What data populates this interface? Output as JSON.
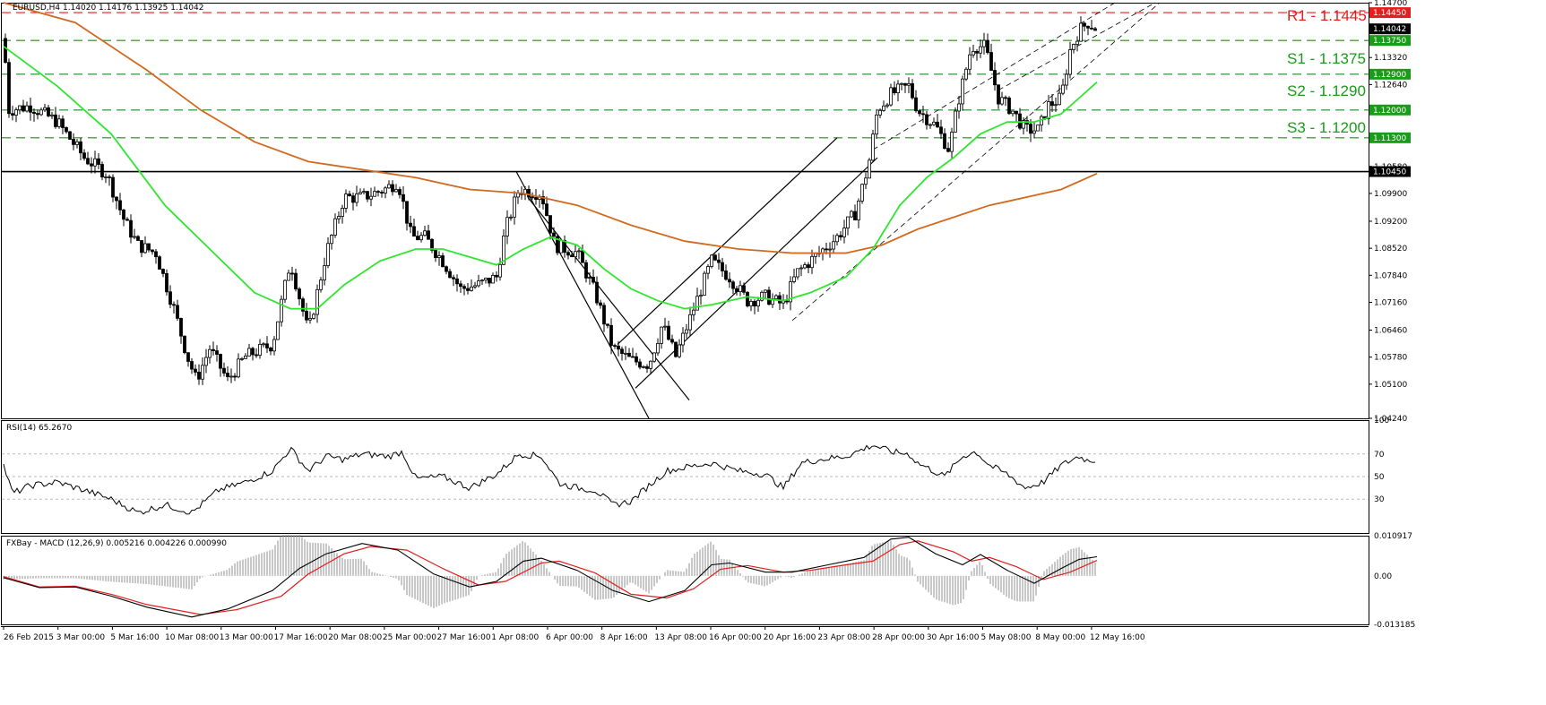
{
  "header": {
    "title": "EURUSD,H4  1.14020 1.14176 1.13925 1.14042",
    "rsi_title": "RSI(14) 65.2670",
    "macd_title": "FXBay - MACD (12,26,9) 0.005216 0.004226 0.000990"
  },
  "levels": [
    {
      "label": "R1 - 1.1445",
      "price": 1.1445,
      "color": "#e41e1e"
    },
    {
      "label": "S1 - 1.1375",
      "price": 1.1375,
      "color": "#1a9b1a"
    },
    {
      "label": "S2 - 1.1290",
      "price": 1.129,
      "color": "#1a9b1a"
    },
    {
      "label": "S3 - 1.1200",
      "price": 1.12,
      "color": "#1a9b1a"
    }
  ],
  "chart_data": [
    {
      "type": "candlestick",
      "title": "EURUSD,H4",
      "ylim": [
        1.0424,
        1.147
      ],
      "y_ticks": [
        1.0424,
        1.051,
        1.0578,
        1.0646,
        1.0716,
        1.0784,
        1.0852,
        1.092,
        1.099,
        1.1058,
        1.1126,
        1.1194,
        1.1264,
        1.1332,
        1.14,
        1.147
      ],
      "x_tick_labels": [
        "26 Feb 2015",
        "3 Mar 00:00",
        "5 Mar 16:00",
        "10 Mar 08:00",
        "13 Mar 00:00",
        "17 Mar 16:00",
        "20 Mar 08:00",
        "25 Mar 00:00",
        "27 Mar 16:00",
        "1 Apr 08:00",
        "6 Apr 00:00",
        "8 Apr 16:00",
        "13 Apr 08:00",
        "16 Apr 00:00",
        "20 Apr 16:00",
        "23 Apr 08:00",
        "28 Apr 00:00",
        "30 Apr 16:00",
        "5 May 08:00",
        "8 May 00:00",
        "12 May 16:00"
      ],
      "price_path": [
        [
          0,
          1.138
        ],
        [
          6,
          1.12
        ],
        [
          30,
          1.121
        ],
        [
          60,
          1.117
        ],
        [
          90,
          1.108
        ],
        [
          115,
          1.104
        ],
        [
          135,
          1.092
        ],
        [
          150,
          1.086
        ],
        [
          170,
          1.084
        ],
        [
          190,
          1.07
        ],
        [
          205,
          1.058
        ],
        [
          215,
          1.052
        ],
        [
          230,
          1.06
        ],
        [
          250,
          1.052
        ],
        [
          270,
          1.058
        ],
        [
          300,
          1.061
        ],
        [
          320,
          1.082
        ],
        [
          340,
          1.064
        ],
        [
          360,
          1.084
        ],
        [
          380,
          1.098
        ],
        [
          400,
          1.098
        ],
        [
          425,
          1.1
        ],
        [
          440,
          1.102
        ],
        [
          455,
          1.088
        ],
        [
          470,
          1.088
        ],
        [
          490,
          1.082
        ],
        [
          510,
          1.075
        ],
        [
          530,
          1.076
        ],
        [
          550,
          1.078
        ],
        [
          560,
          1.09
        ],
        [
          575,
          1.1
        ],
        [
          600,
          1.099
        ],
        [
          615,
          1.086
        ],
        [
          640,
          1.084
        ],
        [
          660,
          1.074
        ],
        [
          680,
          1.06
        ],
        [
          700,
          1.057
        ],
        [
          720,
          1.056
        ],
        [
          735,
          1.066
        ],
        [
          750,
          1.058
        ],
        [
          770,
          1.07
        ],
        [
          790,
          1.082
        ],
        [
          810,
          1.078
        ],
        [
          830,
          1.072
        ],
        [
          850,
          1.073
        ],
        [
          870,
          1.071
        ],
        [
          885,
          1.079
        ],
        [
          910,
          1.084
        ],
        [
          930,
          1.088
        ],
        [
          950,
          1.094
        ],
        [
          965,
          1.106
        ],
        [
          975,
          1.12
        ],
        [
          990,
          1.124
        ],
        [
          1010,
          1.126
        ],
        [
          1020,
          1.12
        ],
        [
          1040,
          1.116
        ],
        [
          1055,
          1.11
        ],
        [
          1065,
          1.122
        ],
        [
          1080,
          1.136
        ],
        [
          1095,
          1.136
        ],
        [
          1110,
          1.123
        ],
        [
          1125,
          1.12
        ],
        [
          1140,
          1.115
        ],
        [
          1155,
          1.115
        ],
        [
          1165,
          1.121
        ],
        [
          1180,
          1.123
        ],
        [
          1190,
          1.135
        ],
        [
          1200,
          1.14
        ],
        [
          1210,
          1.142
        ],
        [
          1220,
          1.1404
        ]
      ],
      "sma_fast": [
        [
          0,
          1.136
        ],
        [
          60,
          1.126
        ],
        [
          120,
          1.114
        ],
        [
          180,
          1.096
        ],
        [
          230,
          1.085
        ],
        [
          280,
          1.074
        ],
        [
          320,
          1.07
        ],
        [
          350,
          1.07
        ],
        [
          380,
          1.076
        ],
        [
          420,
          1.082
        ],
        [
          460,
          1.085
        ],
        [
          490,
          1.085
        ],
        [
          520,
          1.083
        ],
        [
          550,
          1.081
        ],
        [
          580,
          1.085
        ],
        [
          610,
          1.088
        ],
        [
          640,
          1.086
        ],
        [
          670,
          1.08
        ],
        [
          700,
          1.075
        ],
        [
          730,
          1.072
        ],
        [
          760,
          1.07
        ],
        [
          790,
          1.071
        ],
        [
          830,
          1.073
        ],
        [
          870,
          1.072
        ],
        [
          900,
          1.074
        ],
        [
          940,
          1.078
        ],
        [
          970,
          1.085
        ],
        [
          1000,
          1.096
        ],
        [
          1030,
          1.103
        ],
        [
          1060,
          1.108
        ],
        [
          1090,
          1.114
        ],
        [
          1120,
          1.117
        ],
        [
          1150,
          1.117
        ],
        [
          1180,
          1.119
        ],
        [
          1200,
          1.123
        ],
        [
          1220,
          1.127
        ]
      ],
      "sma_slow": [
        [
          0,
          1.148
        ],
        [
          80,
          1.142
        ],
        [
          160,
          1.13
        ],
        [
          220,
          1.12
        ],
        [
          280,
          1.112
        ],
        [
          340,
          1.107
        ],
        [
          400,
          1.105
        ],
        [
          460,
          1.103
        ],
        [
          520,
          1.1
        ],
        [
          580,
          1.099
        ],
        [
          640,
          1.096
        ],
        [
          700,
          1.091
        ],
        [
          760,
          1.087
        ],
        [
          820,
          1.085
        ],
        [
          880,
          1.084
        ],
        [
          940,
          1.084
        ],
        [
          980,
          1.086
        ],
        [
          1020,
          1.09
        ],
        [
          1060,
          1.093
        ],
        [
          1100,
          1.096
        ],
        [
          1140,
          1.098
        ],
        [
          1180,
          1.1
        ],
        [
          1220,
          1.104
        ]
      ],
      "horizontal_levels": [
        1.1445,
        1.1375,
        1.129,
        1.12,
        1.113,
        1.1045
      ],
      "price_tags": [
        {
          "value": "1.14450",
          "price": 1.1445,
          "color": "#e41e1e"
        },
        {
          "value": "1.14042",
          "price": 1.14042,
          "color": "#000000"
        },
        {
          "value": "1.13750",
          "price": 1.1375,
          "color": "#1a9b1a"
        },
        {
          "value": "1.12900",
          "price": 1.129,
          "color": "#1a9b1a"
        },
        {
          "value": "1.12000",
          "price": 1.12,
          "color": "#1a9b1a"
        },
        {
          "value": "1.11300",
          "price": 1.113,
          "color": "#1a9b1a"
        },
        {
          "value": "1.10450",
          "price": 1.1045,
          "color": "#000000"
        }
      ]
    },
    {
      "type": "line",
      "title": "RSI(14) 65.2670",
      "ylim": [
        0,
        100
      ],
      "y_ticks": [
        30,
        50,
        70,
        100
      ],
      "values": [
        [
          0,
          60
        ],
        [
          10,
          35
        ],
        [
          30,
          42
        ],
        [
          60,
          45
        ],
        [
          90,
          38
        ],
        [
          120,
          30
        ],
        [
          150,
          18
        ],
        [
          180,
          25
        ],
        [
          210,
          18
        ],
        [
          240,
          38
        ],
        [
          270,
          45
        ],
        [
          300,
          55
        ],
        [
          320,
          75
        ],
        [
          340,
          55
        ],
        [
          360,
          68
        ],
        [
          380,
          65
        ],
        [
          400,
          70
        ],
        [
          430,
          68
        ],
        [
          445,
          72
        ],
        [
          460,
          48
        ],
        [
          490,
          50
        ],
        [
          520,
          40
        ],
        [
          550,
          52
        ],
        [
          575,
          70
        ],
        [
          600,
          68
        ],
        [
          620,
          44
        ],
        [
          640,
          40
        ],
        [
          660,
          38
        ],
        [
          680,
          25
        ],
        [
          700,
          28
        ],
        [
          720,
          42
        ],
        [
          740,
          55
        ],
        [
          760,
          58
        ],
        [
          790,
          62
        ],
        [
          820,
          55
        ],
        [
          850,
          52
        ],
        [
          870,
          40
        ],
        [
          890,
          62
        ],
        [
          910,
          65
        ],
        [
          940,
          68
        ],
        [
          970,
          78
        ],
        [
          990,
          72
        ],
        [
          1010,
          70
        ],
        [
          1020,
          62
        ],
        [
          1050,
          50
        ],
        [
          1070,
          68
        ],
        [
          1085,
          72
        ],
        [
          1100,
          60
        ],
        [
          1120,
          52
        ],
        [
          1140,
          40
        ],
        [
          1160,
          45
        ],
        [
          1180,
          60
        ],
        [
          1200,
          68
        ],
        [
          1210,
          64
        ],
        [
          1220,
          65
        ]
      ]
    },
    {
      "type": "line",
      "title": "FXBay - MACD (12,26,9) 0.005216 0.004226 0.000990",
      "ylim": [
        -0.013185,
        0.010917
      ],
      "y_ticks": [
        0.010917,
        0.0,
        -0.013185
      ],
      "y_tick_labels": [
        "0.010917",
        "0.00",
        "-0.013185"
      ],
      "macd": [
        [
          0,
          -0.0005
        ],
        [
          40,
          -0.0032
        ],
        [
          80,
          -0.003
        ],
        [
          120,
          -0.0055
        ],
        [
          160,
          -0.0085
        ],
        [
          210,
          -0.0112
        ],
        [
          250,
          -0.009
        ],
        [
          300,
          -0.004
        ],
        [
          330,
          0.002
        ],
        [
          360,
          0.006
        ],
        [
          400,
          0.0088
        ],
        [
          440,
          0.007
        ],
        [
          480,
          0.0005
        ],
        [
          520,
          -0.003
        ],
        [
          550,
          -0.0015
        ],
        [
          580,
          0.004
        ],
        [
          600,
          0.0048
        ],
        [
          640,
          0.0015
        ],
        [
          680,
          -0.004
        ],
        [
          720,
          -0.007
        ],
        [
          760,
          -0.004
        ],
        [
          790,
          0.003
        ],
        [
          810,
          0.0035
        ],
        [
          850,
          0.001
        ],
        [
          880,
          0.001
        ],
        [
          920,
          0.003
        ],
        [
          960,
          0.005
        ],
        [
          990,
          0.01
        ],
        [
          1010,
          0.0105
        ],
        [
          1040,
          0.006
        ],
        [
          1070,
          0.003
        ],
        [
          1090,
          0.0058
        ],
        [
          1120,
          0.0015
        ],
        [
          1150,
          -0.002
        ],
        [
          1180,
          0.002
        ],
        [
          1200,
          0.0045
        ],
        [
          1220,
          0.0052
        ]
      ],
      "signal": [
        [
          0,
          -0.0002
        ],
        [
          40,
          -0.003
        ],
        [
          80,
          -0.0028
        ],
        [
          120,
          -0.005
        ],
        [
          160,
          -0.0078
        ],
        [
          220,
          -0.0105
        ],
        [
          260,
          -0.0092
        ],
        [
          310,
          -0.0055
        ],
        [
          340,
          0.0005
        ],
        [
          380,
          0.006
        ],
        [
          410,
          0.008
        ],
        [
          450,
          0.007
        ],
        [
          490,
          0.002
        ],
        [
          530,
          -0.0025
        ],
        [
          560,
          -0.0015
        ],
        [
          600,
          0.0035
        ],
        [
          620,
          0.004
        ],
        [
          660,
          0.0008
        ],
        [
          700,
          -0.005
        ],
        [
          740,
          -0.006
        ],
        [
          770,
          -0.0035
        ],
        [
          800,
          0.0018
        ],
        [
          830,
          0.0028
        ],
        [
          870,
          0.001
        ],
        [
          900,
          0.0015
        ],
        [
          940,
          0.003
        ],
        [
          970,
          0.004
        ],
        [
          1000,
          0.0085
        ],
        [
          1020,
          0.0095
        ],
        [
          1060,
          0.0065
        ],
        [
          1080,
          0.004
        ],
        [
          1100,
          0.005
        ],
        [
          1130,
          0.0025
        ],
        [
          1160,
          -0.001
        ],
        [
          1190,
          0.001
        ],
        [
          1220,
          0.0042
        ]
      ]
    }
  ]
}
